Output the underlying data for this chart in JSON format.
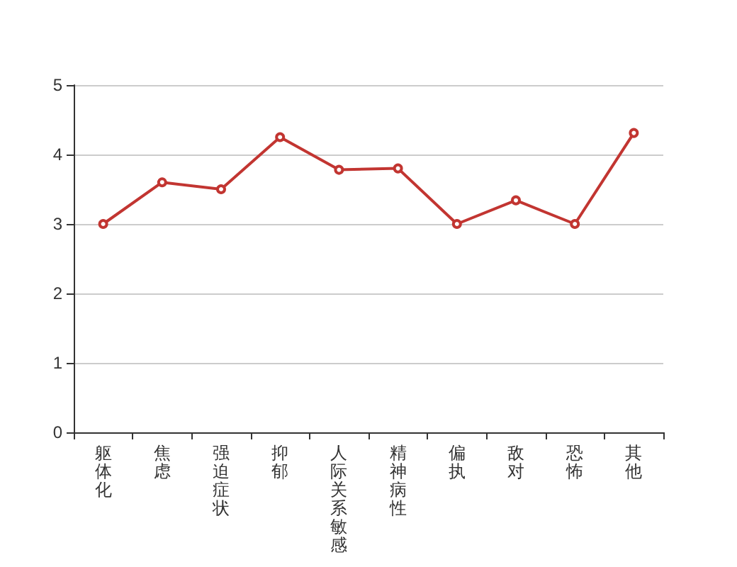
{
  "chart_data": {
    "type": "line",
    "categories": [
      "躯体化",
      "焦虑",
      "强迫症状",
      "抑郁",
      "人际关系敏感",
      "精神病性",
      "偏执",
      "敌对",
      "恐怖",
      "其他"
    ],
    "series": [
      {
        "color": "#c23531",
        "values": [
          3.0,
          3.6,
          3.5,
          4.25,
          3.78,
          3.8,
          3.0,
          3.34,
          3.0,
          4.31
        ]
      }
    ],
    "ylim": [
      0,
      5
    ],
    "yticks": [
      0,
      1,
      2,
      3,
      4,
      5
    ],
    "grid": "y",
    "marker": "circle",
    "line_style": "solid"
  }
}
